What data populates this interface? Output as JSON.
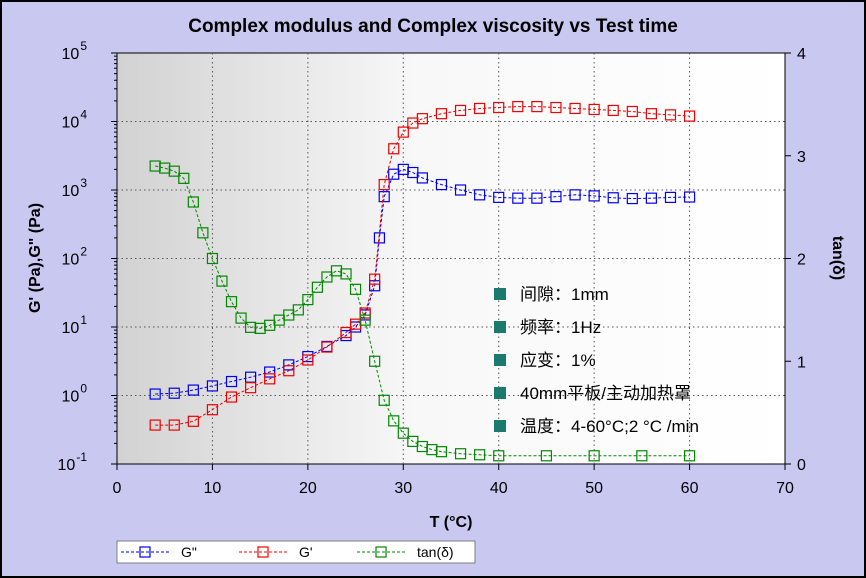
{
  "chart_data": {
    "type": "line",
    "title": "Complex modulus and Complex viscosity vs Test time",
    "xlabel": "T (°C)",
    "ylabel_left": "G' (Pa),G\" (Pa)",
    "ylabel_right": "tan(δ)",
    "xlim": [
      0,
      70
    ],
    "ylim_left": [
      0.1,
      100000
    ],
    "ylim_right": [
      0,
      4
    ],
    "y_left_scale": "log",
    "grid": true,
    "legend_position": "bottom",
    "x_ticks": [
      "0",
      "10",
      "20",
      "30",
      "40",
      "50",
      "60",
      "70"
    ],
    "y_left_ticks": [
      {
        "base": "10",
        "exp": "-1"
      },
      {
        "base": "10",
        "exp": "0"
      },
      {
        "base": "10",
        "exp": "1"
      },
      {
        "base": "10",
        "exp": "2"
      },
      {
        "base": "10",
        "exp": "3"
      },
      {
        "base": "10",
        "exp": "4"
      },
      {
        "base": "10",
        "exp": "5"
      }
    ],
    "y_right_ticks": [
      "0",
      "1",
      "2",
      "3",
      "4"
    ],
    "series": [
      {
        "name": "G\"",
        "axis": "left",
        "color": "#0000ee",
        "x": [
          4,
          6,
          8,
          10,
          12,
          14,
          16,
          18,
          20,
          22,
          24,
          25,
          26,
          27,
          27.5,
          28,
          29,
          30,
          31,
          32,
          34,
          36,
          38,
          40,
          42,
          44,
          46,
          48,
          50,
          52,
          54,
          56,
          58,
          60
        ],
        "y": [
          1.05,
          1.08,
          1.2,
          1.38,
          1.6,
          1.85,
          2.2,
          2.8,
          3.7,
          5.2,
          7.5,
          10,
          15,
          40,
          200,
          800,
          1700,
          2000,
          1800,
          1500,
          1200,
          1000,
          850,
          780,
          760,
          760,
          800,
          850,
          820,
          770,
          750,
          760,
          780,
          790
        ]
      },
      {
        "name": "G'",
        "axis": "left",
        "color": "#ee0000",
        "x": [
          4,
          6,
          8,
          10,
          12,
          14,
          16,
          18,
          20,
          22,
          24,
          25,
          26,
          27,
          28,
          29,
          30,
          31,
          32,
          34,
          36,
          38,
          40,
          42,
          44,
          46,
          48,
          50,
          52,
          54,
          56,
          58,
          60
        ],
        "y": [
          0.37,
          0.37,
          0.42,
          0.62,
          0.95,
          1.3,
          1.75,
          2.3,
          3.3,
          5.1,
          8.3,
          11,
          16,
          50,
          1200,
          4000,
          7000,
          9500,
          11000,
          13000,
          14500,
          15500,
          16000,
          16500,
          16500,
          16000,
          15500,
          15000,
          14500,
          14000,
          13000,
          12500,
          12000
        ]
      },
      {
        "name": "tan(δ)",
        "axis": "right",
        "color": "#008800",
        "x": [
          4,
          5,
          6,
          7,
          8,
          9,
          10,
          11,
          12,
          13,
          14,
          15,
          16,
          17,
          18,
          19,
          20,
          21,
          22,
          23,
          24,
          25,
          26,
          27,
          28,
          29,
          30,
          31,
          32,
          33,
          34,
          36,
          38,
          40,
          45,
          50,
          55,
          60
        ],
        "y": [
          2.9,
          2.88,
          2.85,
          2.78,
          2.55,
          2.25,
          2.0,
          1.78,
          1.58,
          1.42,
          1.33,
          1.32,
          1.35,
          1.4,
          1.45,
          1.5,
          1.6,
          1.72,
          1.82,
          1.88,
          1.85,
          1.7,
          1.4,
          1.0,
          0.62,
          0.42,
          0.3,
          0.22,
          0.17,
          0.14,
          0.12,
          0.1,
          0.09,
          0.08,
          0.08,
          0.08,
          0.08,
          0.08
        ]
      }
    ],
    "annotations": [
      "间隙：1mm",
      "频率：1Hz",
      "应变：1%",
      "40mm平板/主动加热罩",
      "温度：4-60°C;2 °C /min"
    ],
    "annotation_marker_color": "#1a7a6e"
  },
  "legend_labels": [
    "G\"",
    "G'",
    "tan(δ)"
  ]
}
